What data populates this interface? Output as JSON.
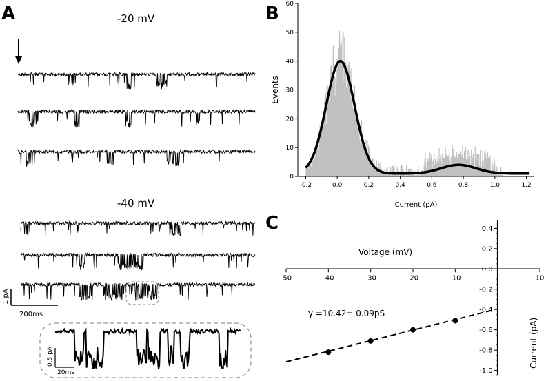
{
  "panels": {
    "a": {
      "letter": "A"
    },
    "b": {
      "letter": "B"
    },
    "c": {
      "letter": "C"
    }
  },
  "traces": {
    "label_top": "-20 mV",
    "label_bottom": "-40 mV",
    "scale_y": "1 pA",
    "scale_x": "200ms",
    "inset_scale_y": "0.5 pA",
    "inset_scale_x": "20ms"
  },
  "chart_data": [
    {
      "type": "bar",
      "panel": "B",
      "xlabel": "Current (pA)",
      "ylabel": "Events",
      "xlim": [
        -0.25,
        1.25
      ],
      "ylim": [
        0,
        60
      ],
      "x_ticks": [
        -0.2,
        0.0,
        0.2,
        0.4,
        0.6,
        0.8,
        1.0,
        1.2
      ],
      "x_tick_labels": [
        "-0.2",
        "0.0",
        "0.2",
        "0.4",
        "0.6",
        "0.8",
        "1.0",
        "1.2"
      ],
      "y_ticks": [
        0,
        10,
        20,
        30,
        40,
        50,
        60
      ],
      "histogram_color": "#c0c0c0",
      "fit_color": "#000000",
      "fit": {
        "gaussians": [
          {
            "mean": 0.02,
            "sd": 0.09,
            "amplitude": 39
          },
          {
            "mean": 0.77,
            "sd": 0.11,
            "amplitude": 3
          }
        ],
        "baseline": 1,
        "x_range": [
          -0.2,
          1.22
        ]
      }
    },
    {
      "type": "scatter",
      "panel": "C",
      "xlabel": "Voltage (mV)",
      "ylabel": "Current (pA)",
      "xlim": [
        -50,
        10
      ],
      "ylim": [
        -1.05,
        0.45
      ],
      "x_ticks": [
        -50,
        -40,
        -30,
        -20,
        -10,
        0,
        10
      ],
      "x_tick_labels": [
        "-50",
        "-40",
        "-30",
        "-20",
        "-10",
        "",
        "10"
      ],
      "y_ticks": [
        0.4,
        0.2,
        0.0,
        -0.2,
        -0.4,
        -0.6,
        -0.8,
        -1.0
      ],
      "y_tick_labels": [
        "0.4",
        "0.2",
        "0.0",
        "-0.2",
        "-0.4",
        "-0.6",
        "-0.8",
        "-1.0"
      ],
      "points": [
        {
          "x": -40,
          "y": -0.82
        },
        {
          "x": -30,
          "y": -0.71
        },
        {
          "x": -20,
          "y": -0.6
        },
        {
          "x": -10,
          "y": -0.51
        }
      ],
      "fit_line": {
        "x": [
          -50,
          -1
        ],
        "y": [
          -0.915,
          -0.405
        ],
        "style": "dashed"
      },
      "annotation": "γ =10.42± 0.09pS"
    }
  ]
}
